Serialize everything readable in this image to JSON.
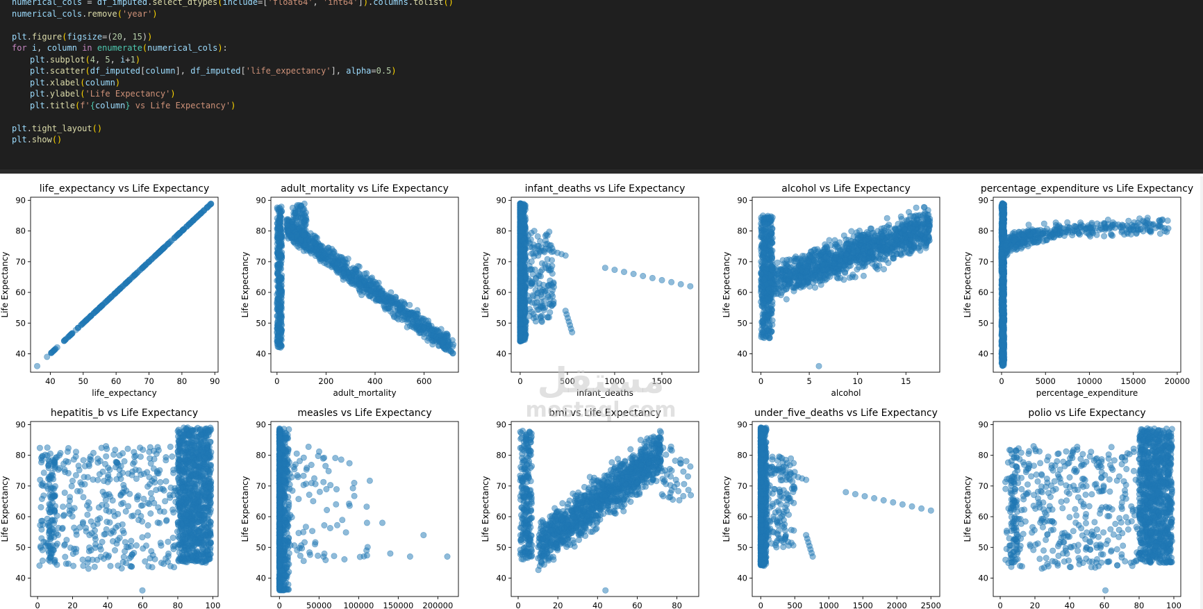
{
  "code_cell": {
    "lines": [
      [
        {
          "t": "numerical_cols",
          "c": "var"
        },
        {
          "t": " = ",
          "c": "op"
        },
        {
          "t": "df_imputed",
          "c": "var"
        },
        {
          "t": ".",
          "c": "op"
        },
        {
          "t": "select_dtypes",
          "c": "fn"
        },
        {
          "t": "(",
          "c": "p"
        },
        {
          "t": "include",
          "c": "var"
        },
        {
          "t": "=[",
          "c": "op"
        },
        {
          "t": "'float64'",
          "c": "str"
        },
        {
          "t": ", ",
          "c": "op"
        },
        {
          "t": "'int64'",
          "c": "str"
        },
        {
          "t": "]",
          "c": "op"
        },
        {
          "t": ")",
          "c": "p"
        },
        {
          "t": ".",
          "c": "op"
        },
        {
          "t": "columns",
          "c": "var"
        },
        {
          "t": ".",
          "c": "op"
        },
        {
          "t": "tolist",
          "c": "fn"
        },
        {
          "t": "()",
          "c": "p"
        }
      ],
      [
        {
          "t": "numerical_cols",
          "c": "var"
        },
        {
          "t": ".",
          "c": "op"
        },
        {
          "t": "remove",
          "c": "fn"
        },
        {
          "t": "(",
          "c": "p"
        },
        {
          "t": "'year'",
          "c": "str"
        },
        {
          "t": ")",
          "c": "p"
        }
      ],
      [],
      [
        {
          "t": "plt",
          "c": "var"
        },
        {
          "t": ".",
          "c": "op"
        },
        {
          "t": "figure",
          "c": "fn"
        },
        {
          "t": "(",
          "c": "p"
        },
        {
          "t": "figsize",
          "c": "var"
        },
        {
          "t": "=(",
          "c": "op"
        },
        {
          "t": "20",
          "c": "num"
        },
        {
          "t": ", ",
          "c": "op"
        },
        {
          "t": "15",
          "c": "num"
        },
        {
          "t": ")",
          "c": "op"
        },
        {
          "t": ")",
          "c": "p"
        }
      ],
      [
        {
          "t": "for",
          "c": "kw"
        },
        {
          "t": " ",
          "c": "op"
        },
        {
          "t": "i",
          "c": "var"
        },
        {
          "t": ", ",
          "c": "op"
        },
        {
          "t": "column",
          "c": "var"
        },
        {
          "t": " ",
          "c": "op"
        },
        {
          "t": "in",
          "c": "kw"
        },
        {
          "t": " ",
          "c": "op"
        },
        {
          "t": "enumerate",
          "c": "bi"
        },
        {
          "t": "(",
          "c": "p"
        },
        {
          "t": "numerical_cols",
          "c": "var"
        },
        {
          "t": ")",
          "c": "p"
        },
        {
          "t": ":",
          "c": "op"
        }
      ],
      [
        {
          "t": "plt",
          "c": "var"
        },
        {
          "t": ".",
          "c": "op"
        },
        {
          "t": "subplot",
          "c": "fn"
        },
        {
          "t": "(",
          "c": "p"
        },
        {
          "t": "4",
          "c": "num"
        },
        {
          "t": ", ",
          "c": "op"
        },
        {
          "t": "5",
          "c": "num"
        },
        {
          "t": ", ",
          "c": "op"
        },
        {
          "t": "i",
          "c": "var"
        },
        {
          "t": "+",
          "c": "op"
        },
        {
          "t": "1",
          "c": "num"
        },
        {
          "t": ")",
          "c": "p"
        }
      ],
      [
        {
          "t": "plt",
          "c": "var"
        },
        {
          "t": ".",
          "c": "op"
        },
        {
          "t": "scatter",
          "c": "fn"
        },
        {
          "t": "(",
          "c": "p"
        },
        {
          "t": "df_imputed",
          "c": "var"
        },
        {
          "t": "[",
          "c": "op"
        },
        {
          "t": "column",
          "c": "var"
        },
        {
          "t": "], ",
          "c": "op"
        },
        {
          "t": "df_imputed",
          "c": "var"
        },
        {
          "t": "[",
          "c": "op"
        },
        {
          "t": "'life_expectancy'",
          "c": "str"
        },
        {
          "t": "], ",
          "c": "op"
        },
        {
          "t": "alpha",
          "c": "var"
        },
        {
          "t": "=",
          "c": "op"
        },
        {
          "t": "0.5",
          "c": "num"
        },
        {
          "t": ")",
          "c": "p"
        }
      ],
      [
        {
          "t": "plt",
          "c": "var"
        },
        {
          "t": ".",
          "c": "op"
        },
        {
          "t": "xlabel",
          "c": "fn"
        },
        {
          "t": "(",
          "c": "p"
        },
        {
          "t": "column",
          "c": "var"
        },
        {
          "t": ")",
          "c": "p"
        }
      ],
      [
        {
          "t": "plt",
          "c": "var"
        },
        {
          "t": ".",
          "c": "op"
        },
        {
          "t": "ylabel",
          "c": "fn"
        },
        {
          "t": "(",
          "c": "p"
        },
        {
          "t": "'Life Expectancy'",
          "c": "str"
        },
        {
          "t": ")",
          "c": "p"
        }
      ],
      [
        {
          "t": "plt",
          "c": "var"
        },
        {
          "t": ".",
          "c": "op"
        },
        {
          "t": "title",
          "c": "fn"
        },
        {
          "t": "(",
          "c": "p"
        },
        {
          "t": "f'",
          "c": "str"
        },
        {
          "t": "{",
          "c": "bi"
        },
        {
          "t": "column",
          "c": "var"
        },
        {
          "t": "}",
          "c": "bi"
        },
        {
          "t": " vs Life Expectancy'",
          "c": "str"
        },
        {
          "t": ")",
          "c": "p"
        }
      ],
      [],
      [
        {
          "t": "plt",
          "c": "var"
        },
        {
          "t": ".",
          "c": "op"
        },
        {
          "t": "tight_layout",
          "c": "fn"
        },
        {
          "t": "()",
          "c": "p"
        }
      ],
      [
        {
          "t": "plt",
          "c": "var"
        },
        {
          "t": ".",
          "c": "op"
        },
        {
          "t": "show",
          "c": "fn"
        },
        {
          "t": "()",
          "c": "p"
        }
      ]
    ],
    "indented_lines": [
      5,
      6,
      7,
      8,
      9
    ]
  },
  "watermark": {
    "arabic": "مستقل",
    "latin": "mostaql.com"
  },
  "colors": {
    "code_background": "#1f1f1f",
    "marker": "#1f77b4",
    "marker_alpha": 0.5
  },
  "chart_data": [
    {
      "type": "scatter",
      "title": "life_expectancy vs Life Expectancy",
      "xlabel": "life_expectancy",
      "ylabel": "Life Expectancy",
      "xlim": [
        34,
        91
      ],
      "ylim": [
        34,
        91
      ],
      "xticks": [
        40,
        50,
        60,
        70,
        80,
        90
      ],
      "yticks": [
        40,
        50,
        60,
        70,
        80,
        90
      ],
      "pattern": "identity",
      "x_range": [
        36,
        89
      ],
      "sample_points": [
        [
          36,
          36
        ],
        [
          39,
          39
        ],
        [
          41,
          41
        ],
        [
          45,
          45
        ],
        [
          50,
          50
        ],
        [
          55,
          55
        ],
        [
          60,
          60
        ],
        [
          65,
          65
        ],
        [
          70,
          70
        ],
        [
          75,
          75
        ],
        [
          80,
          80
        ],
        [
          85,
          85
        ],
        [
          89,
          89
        ]
      ]
    },
    {
      "type": "scatter",
      "title": "adult_mortality vs Life Expectancy",
      "xlabel": "adult_mortality",
      "ylabel": "Life Expectancy",
      "xlim": [
        -25,
        740
      ],
      "ylim": [
        34,
        91
      ],
      "xticks": [
        0,
        200,
        400,
        600
      ],
      "yticks": [
        40,
        50,
        60,
        70,
        80,
        90
      ],
      "pattern": "decreasing",
      "x_range": [
        0,
        720
      ],
      "sample_points": [
        [
          2,
          82
        ],
        [
          5,
          60
        ],
        [
          15,
          50
        ],
        [
          60,
          88
        ],
        [
          70,
          89
        ],
        [
          100,
          78
        ],
        [
          150,
          74
        ],
        [
          200,
          72
        ],
        [
          250,
          68
        ],
        [
          300,
          63
        ],
        [
          350,
          58
        ],
        [
          400,
          56
        ],
        [
          450,
          50
        ],
        [
          500,
          48
        ],
        [
          550,
          46
        ],
        [
          600,
          45
        ],
        [
          680,
          36
        ],
        [
          720,
          44
        ]
      ]
    },
    {
      "type": "scatter",
      "title": "infant_deaths vs Life Expectancy",
      "xlabel": "infant_deaths",
      "ylabel": "Life Expectancy",
      "xlim": [
        -95,
        1890
      ],
      "ylim": [
        34,
        91
      ],
      "xticks": [
        0,
        500,
        1000,
        1500
      ],
      "yticks": [
        40,
        50,
        60,
        70,
        80,
        90
      ],
      "pattern": "near_zero_with_tails",
      "x_range": [
        0,
        1800
      ],
      "sample_points": [
        [
          0,
          89
        ],
        [
          10,
          70
        ],
        [
          20,
          45
        ],
        [
          100,
          76
        ],
        [
          300,
          73
        ],
        [
          480,
          72
        ],
        [
          500,
          54
        ],
        [
          550,
          47
        ],
        [
          900,
          68
        ],
        [
          1100,
          67
        ],
        [
          1400,
          65
        ],
        [
          1800,
          62
        ]
      ]
    },
    {
      "type": "scatter",
      "title": "alcohol vs Life Expectancy",
      "xlabel": "alcohol",
      "ylabel": "Life Expectancy",
      "xlim": [
        -0.9,
        18.5
      ],
      "ylim": [
        34,
        91
      ],
      "xticks": [
        0,
        5,
        10,
        15
      ],
      "yticks": [
        40,
        50,
        60,
        70,
        80,
        90
      ],
      "pattern": "increasing",
      "x_range": [
        0,
        17.9
      ],
      "sample_points": [
        [
          0,
          50
        ],
        [
          1,
          70
        ],
        [
          3,
          75
        ],
        [
          5,
          57
        ],
        [
          6,
          36
        ],
        [
          8,
          82
        ],
        [
          10,
          78
        ],
        [
          12,
          80
        ],
        [
          14,
          74
        ],
        [
          17.9,
          73
        ]
      ]
    },
    {
      "type": "scatter",
      "title": "percentage_expenditure vs Life Expectancy",
      "xlabel": "percentage_expenditure",
      "ylabel": "Life Expectancy",
      "xlim": [
        -950,
        20400
      ],
      "ylim": [
        34,
        91
      ],
      "xticks": [
        0,
        5000,
        10000,
        15000,
        20000
      ],
      "yticks": [
        40,
        50,
        60,
        70,
        80,
        90
      ],
      "pattern": "log_like",
      "x_range": [
        0,
        19500
      ],
      "sample_points": [
        [
          0,
          36
        ],
        [
          0,
          89
        ],
        [
          500,
          72
        ],
        [
          1500,
          78
        ],
        [
          3000,
          80
        ],
        [
          6000,
          82
        ],
        [
          10000,
          82
        ],
        [
          14000,
          82
        ],
        [
          17000,
          88
        ],
        [
          19500,
          82
        ]
      ]
    },
    {
      "type": "scatter",
      "title": "hepatitis_b vs Life Expectancy",
      "xlabel": "",
      "ylabel": "Life Expectancy",
      "xlim": [
        -4,
        103
      ],
      "ylim": [
        34,
        91
      ],
      "xticks": [
        0,
        20,
        40,
        60,
        80,
        100
      ],
      "yticks": [
        40,
        50,
        60,
        70,
        80,
        90
      ],
      "pattern": "cluster_right",
      "x_range": [
        1,
        99
      ],
      "sample_points": [
        [
          2,
          48
        ],
        [
          8,
          70
        ],
        [
          20,
          60
        ],
        [
          40,
          54
        ],
        [
          55,
          36
        ],
        [
          60,
          62
        ],
        [
          80,
          70
        ],
        [
          90,
          75
        ],
        [
          99,
          88
        ]
      ]
    },
    {
      "type": "scatter",
      "title": "measles vs Life Expectancy",
      "xlabel": "",
      "ylabel": "Life Expectancy",
      "xlim": [
        -10800,
        226000
      ],
      "ylim": [
        34,
        91
      ],
      "xticks": [
        0,
        50000,
        100000,
        150000,
        200000
      ],
      "yticks": [
        40,
        50,
        60,
        70,
        80,
        90
      ],
      "pattern": "near_zero_sparse",
      "x_range": [
        0,
        212000
      ],
      "sample_points": [
        [
          0,
          89
        ],
        [
          0,
          45
        ],
        [
          20000,
          80
        ],
        [
          60000,
          62
        ],
        [
          100000,
          74
        ],
        [
          130000,
          58
        ],
        [
          140000,
          48
        ],
        [
          165000,
          47
        ],
        [
          182000,
          54
        ],
        [
          212000,
          47
        ]
      ]
    },
    {
      "type": "scatter",
      "title": "bmi vs Life Expectancy",
      "xlabel": "",
      "ylabel": "Life Expectancy",
      "xlim": [
        -3.5,
        91
      ],
      "ylim": [
        34,
        91
      ],
      "xticks": [
        0,
        20,
        40,
        60,
        80
      ],
      "yticks": [
        40,
        50,
        60,
        70,
        80,
        90
      ],
      "pattern": "increasing_bands",
      "x_range": [
        1,
        87.3
      ],
      "sample_points": [
        [
          1,
          52
        ],
        [
          5,
          80
        ],
        [
          15,
          60
        ],
        [
          20,
          41
        ],
        [
          30,
          60
        ],
        [
          45,
          36
        ],
        [
          55,
          78
        ],
        [
          65,
          85
        ],
        [
          80,
          68
        ],
        [
          87,
          67
        ]
      ]
    },
    {
      "type": "scatter",
      "title": "under_five_deaths vs Life Expectancy",
      "xlabel": "",
      "ylabel": "Life Expectancy",
      "xlim": [
        -125,
        2630
      ],
      "ylim": [
        34,
        91
      ],
      "xticks": [
        0,
        500,
        1000,
        1500,
        2000,
        2500
      ],
      "yticks": [
        40,
        50,
        60,
        70,
        80,
        90
      ],
      "pattern": "near_zero_with_tails",
      "x_range": [
        0,
        2500
      ],
      "sample_points": [
        [
          0,
          89
        ],
        [
          10,
          36
        ],
        [
          150,
          76
        ],
        [
          350,
          72
        ],
        [
          800,
          54
        ],
        [
          950,
          47
        ],
        [
          1100,
          68
        ],
        [
          1600,
          66
        ],
        [
          2000,
          64
        ],
        [
          2500,
          62
        ]
      ]
    },
    {
      "type": "scatter",
      "title": "polio vs Life Expectancy",
      "xlabel": "",
      "ylabel": "Life Expectancy",
      "xlim": [
        -4,
        104
      ],
      "ylim": [
        34,
        91
      ],
      "xticks": [
        0,
        20,
        40,
        60,
        80,
        100
      ],
      "yticks": [
        40,
        50,
        60,
        70,
        80,
        90
      ],
      "pattern": "cluster_right",
      "x_range": [
        3,
        99
      ],
      "sample_points": [
        [
          3,
          45
        ],
        [
          8,
          80
        ],
        [
          18,
          58
        ],
        [
          40,
          60
        ],
        [
          60,
          48
        ],
        [
          65,
          36
        ],
        [
          80,
          70
        ],
        [
          95,
          80
        ],
        [
          99,
          88
        ]
      ]
    }
  ]
}
